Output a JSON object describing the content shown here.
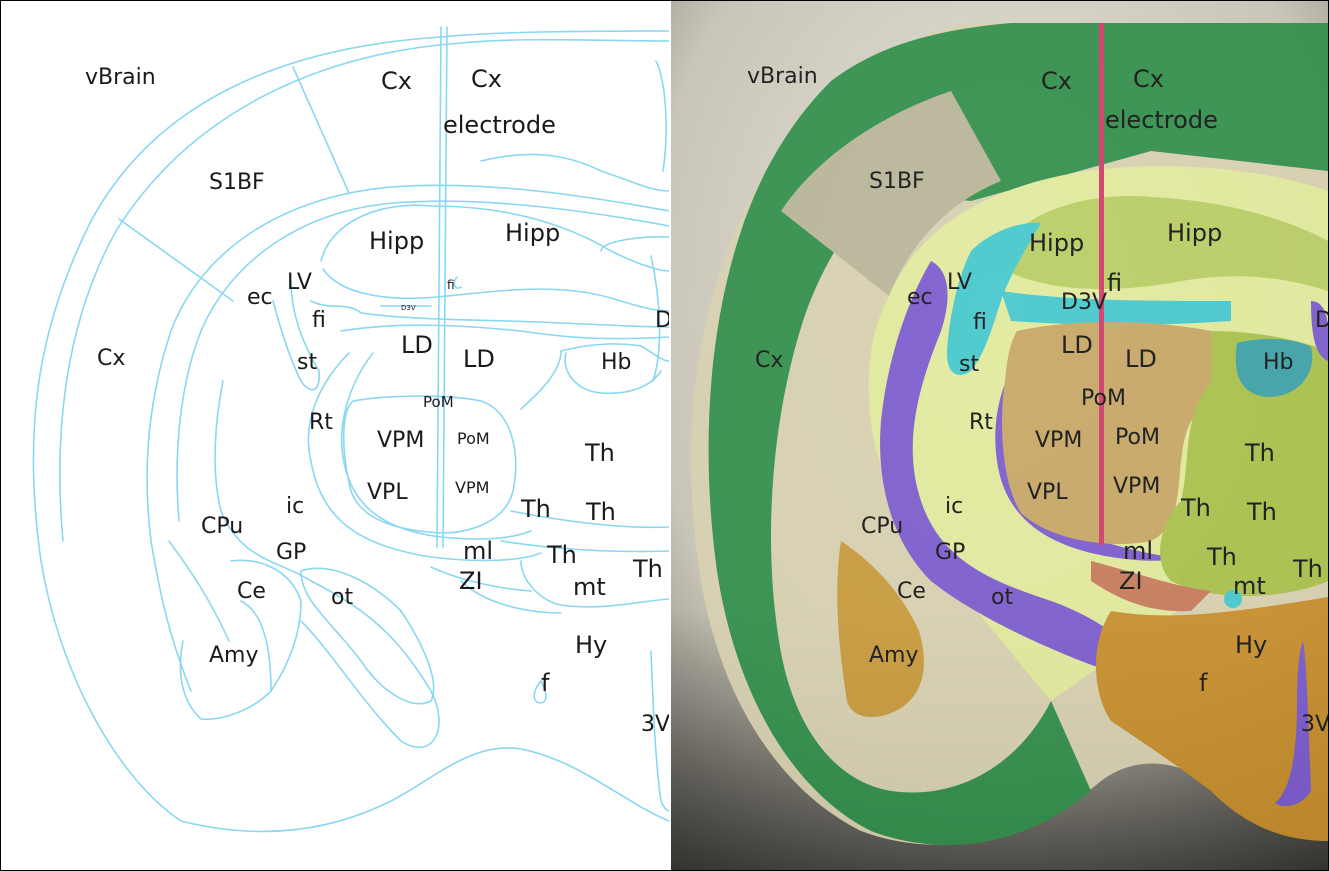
{
  "panels": {
    "atlas": {
      "labels": {
        "vbrain": "vBrain",
        "cx_top1": "Cx",
        "cx_top2": "Cx",
        "electrode": "electrode",
        "s1bf": "S1BF",
        "hipp1": "Hipp",
        "hipp2": "Hipp",
        "ec": "ec",
        "lv": "LV",
        "fi1": "fi",
        "fi2": "fi",
        "d3v": "D3V",
        "d_edge": "D",
        "cx_left": "Cx",
        "st": "st",
        "ld1": "LD",
        "ld2": "LD",
        "hb": "Hb",
        "pom1": "PoM",
        "rt": "Rt",
        "vpm1": "VPM",
        "pom2": "PoM",
        "th1": "Th",
        "vpl": "VPL",
        "vpm2": "VPM",
        "ic": "ic",
        "th2": "Th",
        "th3": "Th",
        "cpu": "CPu",
        "gp": "GP",
        "ml": "ml",
        "th4": "Th",
        "th5": "Th",
        "ce": "Ce",
        "ot": "ot",
        "zi": "ZI",
        "mt": "mt",
        "hy": "Hy",
        "amy": "Amy",
        "f": "f",
        "v3": "3V"
      }
    },
    "overlay": {
      "labels": {
        "vbrain": "vBrain",
        "cx_top1": "Cx",
        "cx_top2": "Cx",
        "electrode": "electrode",
        "s1bf": "S1BF",
        "hipp1": "Hipp",
        "hipp2": "Hipp",
        "fi1": "fi",
        "ec": "ec",
        "lv": "LV",
        "d3v": "D3V",
        "d_edge": "D",
        "fi2": "fi",
        "cx_left": "Cx",
        "st": "st",
        "ld1": "LD",
        "ld2": "LD",
        "hb": "Hb",
        "pom1": "PoM",
        "rt": "Rt",
        "vpm1": "VPM",
        "pom2": "PoM",
        "th1": "Th",
        "ic": "ic",
        "vpl": "VPL",
        "vpm2": "VPM",
        "th2": "Th",
        "th3": "Th",
        "cpu": "CPu",
        "gp": "GP",
        "ml": "ml",
        "th4": "Th",
        "th5": "Th",
        "ce": "Ce",
        "ot": "ot",
        "zi": "ZI",
        "mt": "mt",
        "hy": "Hy",
        "amy": "Amy",
        "f": "f",
        "v3": "3V"
      },
      "colors": {
        "cortex": "#2f8f4a",
        "s1bf": "#b9b69a",
        "hippocampus": "#b9cf63",
        "ventricle": "#43c9cf",
        "internal_capsule": "#7b5ad0",
        "thalamus": "#c9a765",
        "thalamus_green": "#a9c24a",
        "amygdala": "#c99a3a",
        "hypothalamus": "#c98f2a",
        "electrode": "#d2386a",
        "habenula": "#3aa2a8",
        "zona_incerta": "#c87a5a",
        "pale_yellow": "#e3ec9e"
      }
    }
  }
}
